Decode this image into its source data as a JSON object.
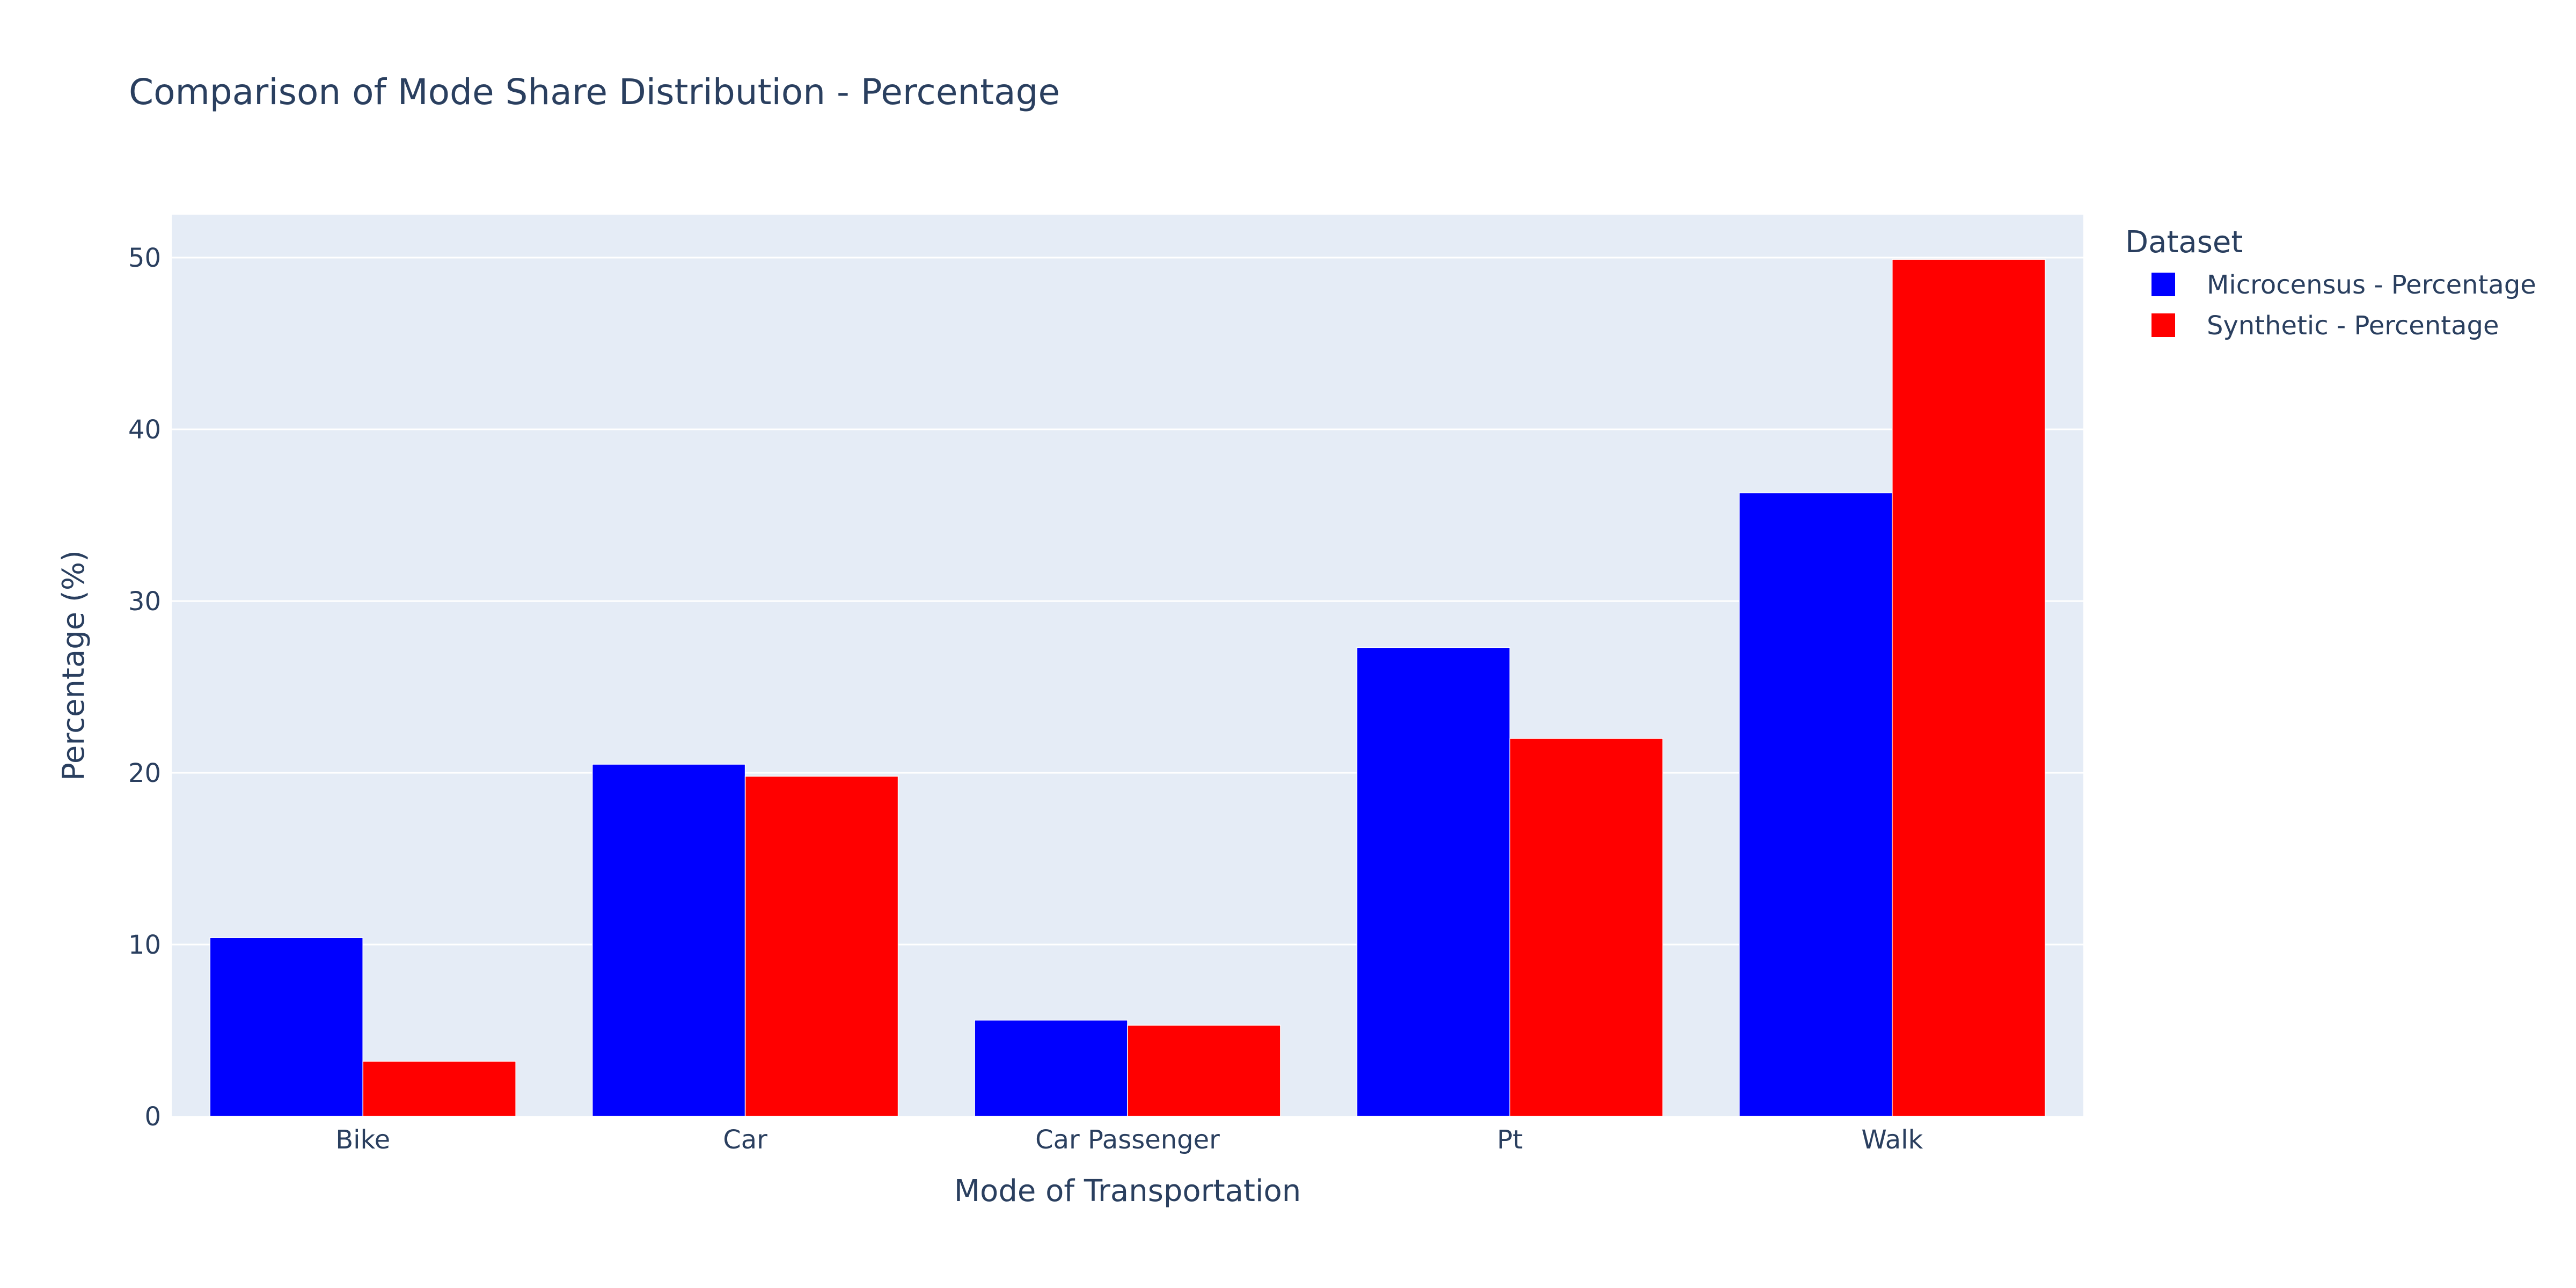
{
  "chart_data": {
    "type": "bar",
    "title": "Comparison of Mode Share Distribution - Percentage",
    "xlabel": "Mode of Transportation",
    "ylabel": "Percentage (%)",
    "categories": [
      "Bike",
      "Car",
      "Car Passenger",
      "Pt",
      "Walk"
    ],
    "series": [
      {
        "name": "Microcensus - Percentage",
        "color": "#0000ff",
        "values": [
          10.4,
          20.5,
          5.6,
          27.3,
          36.3
        ]
      },
      {
        "name": "Synthetic - Percentage",
        "color": "#ff0000",
        "values": [
          3.2,
          19.8,
          5.3,
          22.0,
          49.9
        ]
      }
    ],
    "ylim": [
      0,
      52.5
    ],
    "yticks": [
      0,
      10,
      20,
      30,
      40,
      50
    ],
    "grid": true,
    "legend": {
      "title": "Dataset",
      "position": "top-right"
    },
    "barmode": "group",
    "plot_background": "#e5ecf6"
  }
}
